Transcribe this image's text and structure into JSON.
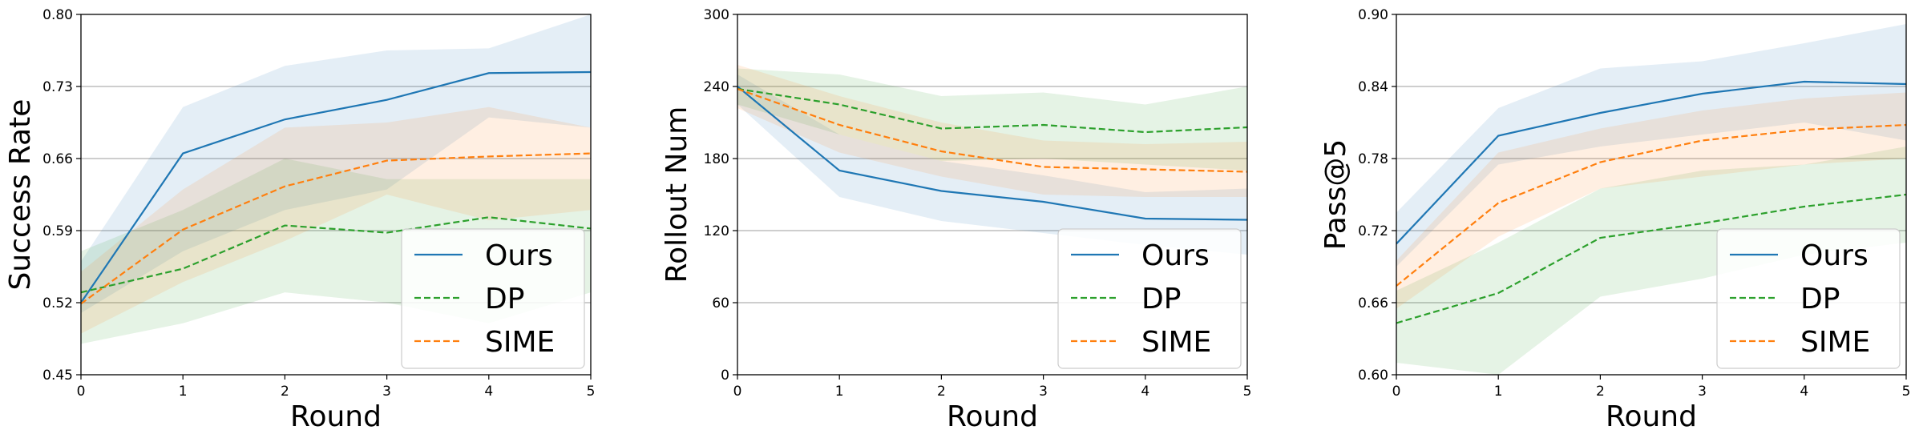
{
  "colors": {
    "ours": "#1f77b4",
    "dp": "#2ca02c",
    "sime": "#ff7f0e",
    "grid": "#b0b0b0",
    "legend_border": "#cccccc"
  },
  "chart_data": [
    {
      "type": "line",
      "xlabel": "Round",
      "ylabel": "Success Rate",
      "xlim": [
        0,
        5
      ],
      "ylim": [
        0.45,
        0.8
      ],
      "xticks": [
        "0",
        "1",
        "2",
        "3",
        "4",
        "5"
      ],
      "yticks": [
        "0.45",
        "0.52",
        "0.59",
        "0.66",
        "0.73",
        "0.80"
      ],
      "grid": "horizontal",
      "legend_position": "lower-right",
      "x": [
        0,
        1,
        2,
        3,
        4,
        5
      ],
      "series": [
        {
          "name": "Ours",
          "style": "solid",
          "values": [
            0.52,
            0.665,
            0.698,
            0.717,
            0.743,
            0.744
          ],
          "band_low": [
            0.51,
            0.57,
            0.61,
            0.63,
            0.7,
            0.69
          ],
          "band_high": [
            0.56,
            0.71,
            0.75,
            0.765,
            0.767,
            0.8
          ]
        },
        {
          "name": "DP",
          "style": "dashed",
          "values": [
            0.53,
            0.553,
            0.595,
            0.588,
            0.603,
            0.592
          ],
          "band_low": [
            0.48,
            0.5,
            0.53,
            0.52,
            0.5,
            0.53
          ],
          "band_high": [
            0.57,
            0.61,
            0.66,
            0.64,
            0.64,
            0.64
          ]
        },
        {
          "name": "SIME",
          "style": "dashed",
          "values": [
            0.519,
            0.591,
            0.633,
            0.658,
            0.662,
            0.665
          ],
          "band_low": [
            0.49,
            0.54,
            0.58,
            0.625,
            0.6,
            0.61
          ],
          "band_high": [
            0.55,
            0.63,
            0.69,
            0.695,
            0.71,
            0.69
          ]
        }
      ]
    },
    {
      "type": "line",
      "xlabel": "Round",
      "ylabel": "Rollout Num",
      "xlim": [
        0,
        5
      ],
      "ylim": [
        0,
        300
      ],
      "xticks": [
        "0",
        "1",
        "2",
        "3",
        "4",
        "5"
      ],
      "yticks": [
        "0",
        "60",
        "120",
        "180",
        "240",
        "300"
      ],
      "grid": "horizontal",
      "legend_position": "lower-right",
      "x": [
        0,
        1,
        2,
        3,
        4,
        5
      ],
      "series": [
        {
          "name": "Ours",
          "style": "solid",
          "values": [
            240,
            170,
            153,
            144,
            130,
            129
          ],
          "band_low": [
            225,
            148,
            128,
            118,
            108,
            100
          ],
          "band_high": [
            250,
            200,
            178,
            166,
            152,
            155
          ]
        },
        {
          "name": "DP",
          "style": "dashed",
          "values": [
            238,
            225,
            205,
            208,
            202,
            206
          ],
          "band_low": [
            225,
            200,
            178,
            180,
            175,
            170
          ],
          "band_high": [
            255,
            250,
            232,
            235,
            225,
            240
          ]
        },
        {
          "name": "SIME",
          "style": "dashed",
          "values": [
            238,
            208,
            186,
            173,
            171,
            169
          ],
          "band_low": [
            222,
            185,
            165,
            150,
            148,
            148
          ],
          "band_high": [
            258,
            232,
            210,
            195,
            192,
            194
          ]
        }
      ]
    },
    {
      "type": "line",
      "xlabel": "Round",
      "ylabel": "Pass@5",
      "xlim": [
        0,
        5
      ],
      "ylim": [
        0.6,
        0.9
      ],
      "xticks": [
        "0",
        "1",
        "2",
        "3",
        "4",
        "5"
      ],
      "yticks": [
        "0.60",
        "0.66",
        "0.72",
        "0.78",
        "0.84",
        "0.90"
      ],
      "grid": "horizontal",
      "legend_position": "lower-right",
      "x": [
        0,
        1,
        2,
        3,
        4,
        5
      ],
      "series": [
        {
          "name": "Ours",
          "style": "solid",
          "values": [
            0.709,
            0.799,
            0.818,
            0.834,
            0.844,
            0.842
          ],
          "band_low": [
            0.69,
            0.775,
            0.79,
            0.8,
            0.81,
            0.795
          ],
          "band_high": [
            0.735,
            0.822,
            0.855,
            0.861,
            0.876,
            0.892
          ]
        },
        {
          "name": "DP",
          "style": "dashed",
          "values": [
            0.643,
            0.668,
            0.714,
            0.726,
            0.74,
            0.75
          ],
          "band_low": [
            0.61,
            0.6,
            0.665,
            0.68,
            0.7,
            0.71
          ],
          "band_high": [
            0.67,
            0.71,
            0.755,
            0.77,
            0.775,
            0.79
          ]
        },
        {
          "name": "SIME",
          "style": "dashed",
          "values": [
            0.674,
            0.743,
            0.777,
            0.795,
            0.804,
            0.808
          ],
          "band_low": [
            0.655,
            0.715,
            0.755,
            0.765,
            0.775,
            0.78
          ],
          "band_high": [
            0.695,
            0.785,
            0.805,
            0.82,
            0.83,
            0.835
          ]
        }
      ]
    }
  ]
}
